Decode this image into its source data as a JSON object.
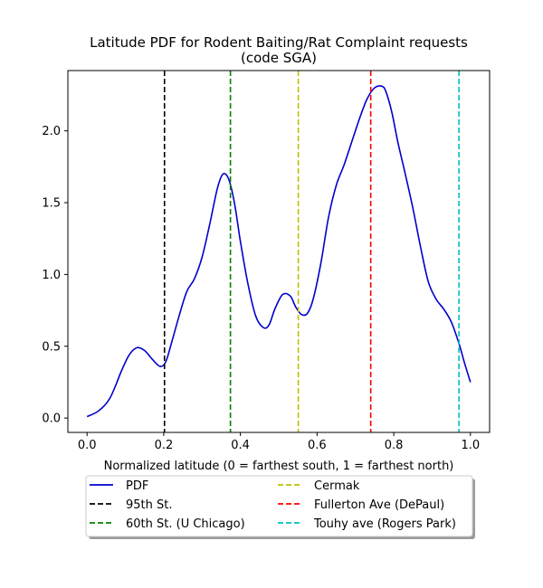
{
  "chart_data": {
    "type": "line",
    "title": [
      "Latitude PDF for Rodent Baiting/Rat Complaint  requests",
      "(code SGA)"
    ],
    "xlabel": "Normalized latitude (0 = farthest south, 1 = farthest north)",
    "ylabel": "",
    "xlim": [
      -0.05,
      1.05
    ],
    "ylim": [
      -0.1,
      2.42
    ],
    "xticks": [
      0.0,
      0.2,
      0.4,
      0.6,
      0.8,
      1.0
    ],
    "xtick_labels": [
      "0.0",
      "0.2",
      "0.4",
      "0.6",
      "0.8",
      "1.0"
    ],
    "yticks": [
      0.0,
      0.5,
      1.0,
      1.5,
      2.0
    ],
    "ytick_labels": [
      "0.0",
      "0.5",
      "1.0",
      "1.5",
      "2.0"
    ],
    "grid": false,
    "legend_position": "below",
    "series": [
      {
        "name": "PDF",
        "color": "#0000cc",
        "style": "solid",
        "x": [
          0.0,
          0.03,
          0.06,
          0.09,
          0.11,
          0.13,
          0.15,
          0.17,
          0.19,
          0.205,
          0.22,
          0.24,
          0.26,
          0.28,
          0.3,
          0.32,
          0.34,
          0.355,
          0.37,
          0.385,
          0.4,
          0.42,
          0.44,
          0.46,
          0.475,
          0.49,
          0.51,
          0.53,
          0.545,
          0.56,
          0.575,
          0.59,
          0.61,
          0.63,
          0.65,
          0.67,
          0.69,
          0.71,
          0.73,
          0.75,
          0.77,
          0.78,
          0.795,
          0.81,
          0.83,
          0.85,
          0.87,
          0.89,
          0.91,
          0.93,
          0.95,
          0.97,
          0.985,
          1.0
        ],
        "y": [
          0.01,
          0.05,
          0.14,
          0.33,
          0.44,
          0.49,
          0.47,
          0.41,
          0.36,
          0.39,
          0.52,
          0.71,
          0.88,
          0.97,
          1.12,
          1.35,
          1.6,
          1.7,
          1.66,
          1.49,
          1.23,
          0.93,
          0.71,
          0.63,
          0.65,
          0.76,
          0.86,
          0.85,
          0.77,
          0.72,
          0.73,
          0.83,
          1.08,
          1.4,
          1.62,
          1.76,
          1.92,
          2.08,
          2.22,
          2.3,
          2.31,
          2.27,
          2.13,
          1.93,
          1.7,
          1.46,
          1.19,
          0.95,
          0.83,
          0.76,
          0.67,
          0.52,
          0.38,
          0.25
        ]
      },
      {
        "name": "95th St.",
        "color": "#000000",
        "style": "dashed",
        "vline_x": 0.202
      },
      {
        "name": "60th St. (U Chicago)",
        "color": "#008000",
        "style": "dashed",
        "vline_x": 0.374
      },
      {
        "name": "Cermak",
        "color": "#bfbf00",
        "style": "dashed",
        "vline_x": 0.551
      },
      {
        "name": "Fullerton Ave (DePaul)",
        "color": "#ff0000",
        "style": "dashed",
        "vline_x": 0.74
      },
      {
        "name": "Touhy ave (Rogers Park)",
        "color": "#00bfbf",
        "style": "dashed",
        "vline_x": 0.97
      }
    ]
  }
}
